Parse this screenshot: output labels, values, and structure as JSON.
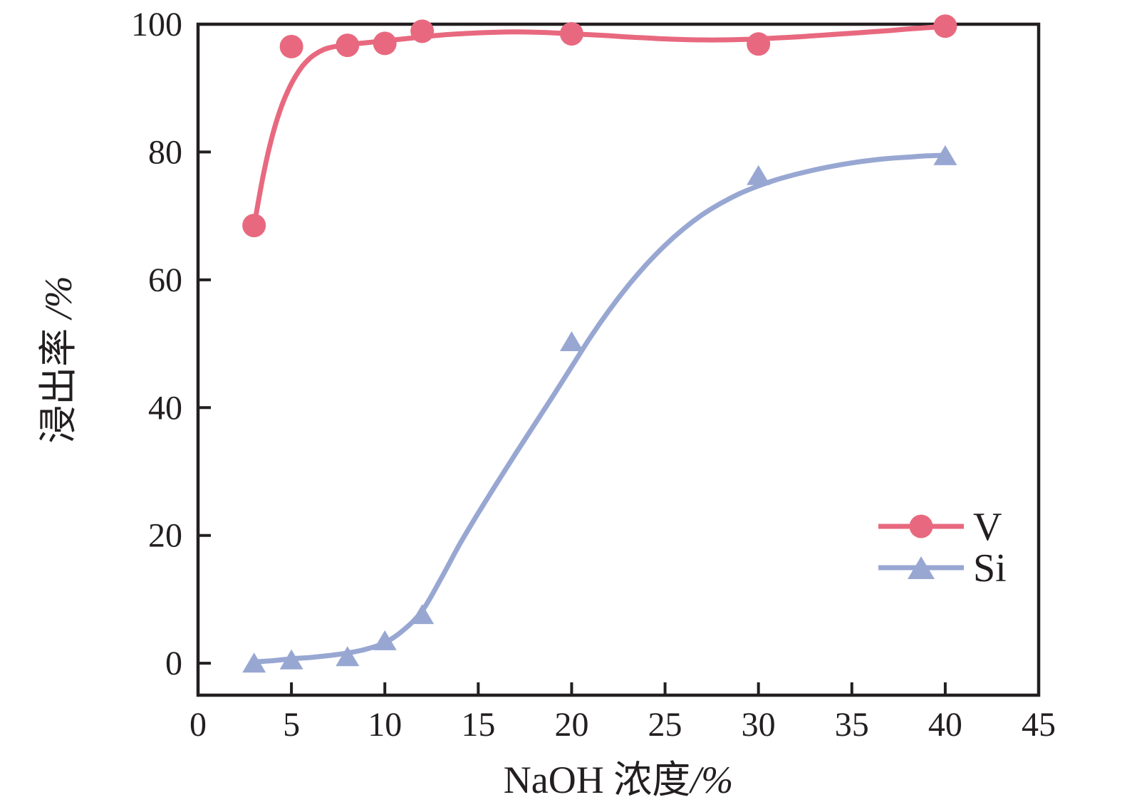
{
  "chart_data": {
    "type": "line",
    "title": "",
    "xlabel": "NaOH 浓度/%",
    "xlabel_main": "NaOH 浓度",
    "xlabel_unit": "/%",
    "ylabel": "浸出率 /%",
    "ylabel_main": "浸出率 ",
    "ylabel_unit": "/%",
    "xlim": [
      0,
      45
    ],
    "ylim": [
      -5,
      100
    ],
    "x_ticks": [
      0,
      5,
      10,
      15,
      20,
      25,
      30,
      35,
      40,
      45
    ],
    "y_ticks": [
      0,
      20,
      40,
      60,
      80,
      100
    ],
    "grid": false,
    "legend_position": "lower right",
    "x": [
      3,
      5,
      8,
      10,
      12,
      20,
      30,
      40
    ],
    "series": [
      {
        "name": "V",
        "marker": "circle",
        "color": "#E8697F",
        "values": [
          68.5,
          96.5,
          96.7,
          97.0,
          98.9,
          98.5,
          96.9,
          99.7
        ],
        "fit_curve": {
          "x": [
            3,
            3.5,
            4,
            4.5,
            5,
            5.5,
            6,
            6.5,
            7,
            8,
            9,
            10,
            11,
            12,
            13,
            14,
            15,
            16,
            17,
            18,
            19,
            20,
            21,
            22,
            23,
            24,
            25,
            26,
            27,
            28,
            29,
            30,
            31,
            32,
            33,
            34,
            35,
            36,
            37,
            38,
            39,
            40
          ],
          "y": [
            68.5,
            76.5,
            82.8,
            87.4,
            90.7,
            93.1,
            94.7,
            95.7,
            96.3,
            96.8,
            97.1,
            97.4,
            97.7,
            98.0,
            98.3,
            98.5,
            98.65,
            98.75,
            98.8,
            98.75,
            98.65,
            98.5,
            98.35,
            98.2,
            98.0,
            97.85,
            97.7,
            97.6,
            97.55,
            97.55,
            97.6,
            97.7,
            97.85,
            98.0,
            98.2,
            98.4,
            98.6,
            98.8,
            99.0,
            99.25,
            99.45,
            99.7
          ]
        }
      },
      {
        "name": "Si",
        "marker": "triangle",
        "color": "#98A7D2",
        "values": [
          0.1,
          0.6,
          1.1,
          3.6,
          7.7,
          50.4,
          76.4,
          79.5
        ],
        "fit_curve": {
          "x": [
            3,
            4,
            5,
            6,
            7,
            8,
            9,
            10,
            11,
            12,
            13,
            14,
            15,
            16,
            17,
            18,
            19,
            20,
            21,
            22,
            23,
            24,
            25,
            26,
            27,
            28,
            29,
            30,
            31,
            32,
            33,
            34,
            35,
            36,
            37,
            38,
            39,
            40
          ],
          "y": [
            0.2,
            0.4,
            0.7,
            0.9,
            1.2,
            1.6,
            2.2,
            3.2,
            5.2,
            8.2,
            13.2,
            18.6,
            23.5,
            28.2,
            32.8,
            37.3,
            41.8,
            46.4,
            51.0,
            55.2,
            59.0,
            62.4,
            65.4,
            68.0,
            70.2,
            72.0,
            73.5,
            74.7,
            75.7,
            76.5,
            77.2,
            77.8,
            78.3,
            78.7,
            79.0,
            79.2,
            79.4,
            79.5
          ]
        }
      }
    ]
  },
  "legend": {
    "items": [
      {
        "label": "V"
      },
      {
        "label": "Si"
      }
    ]
  },
  "colors": {
    "axis": "#231F20",
    "text": "#231F20",
    "background": "#FFFFFF",
    "series_v": "#E8697F",
    "series_si": "#98A7D2"
  }
}
